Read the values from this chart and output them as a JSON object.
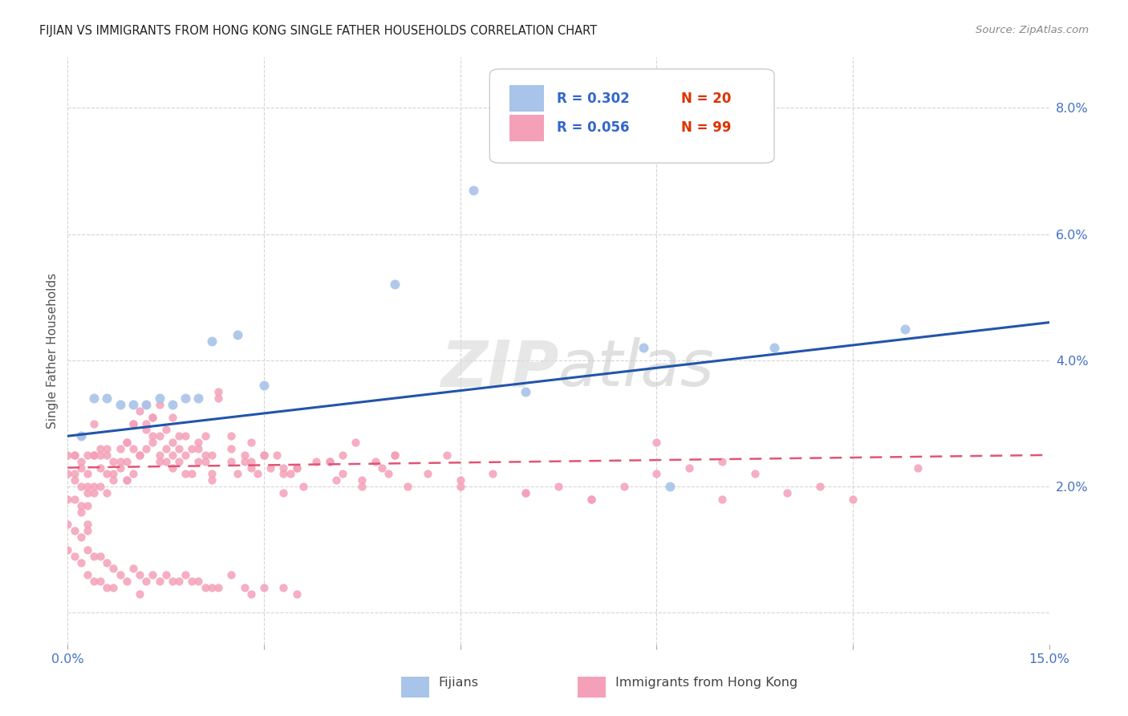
{
  "title": "FIJIAN VS IMMIGRANTS FROM HONG KONG SINGLE FATHER HOUSEHOLDS CORRELATION CHART",
  "source": "Source: ZipAtlas.com",
  "ylabel": "Single Father Households",
  "fijian_color": "#a8c4e8",
  "hk_color": "#f4a0b8",
  "fijian_line_color": "#2255aa",
  "hk_line_color": "#e05575",
  "hk_line_dash": [
    6,
    4
  ],
  "background_color": "#ffffff",
  "watermark": "ZIPatlas",
  "xlim": [
    0.0,
    0.15
  ],
  "ylim": [
    -0.005,
    0.088
  ],
  "fijian_x": [
    0.002,
    0.004,
    0.006,
    0.008,
    0.01,
    0.012,
    0.014,
    0.016,
    0.018,
    0.02,
    0.022,
    0.026,
    0.03,
    0.05,
    0.062,
    0.07,
    0.088,
    0.092,
    0.108,
    0.128
  ],
  "fijian_y": [
    0.028,
    0.034,
    0.034,
    0.033,
    0.033,
    0.033,
    0.034,
    0.033,
    0.034,
    0.034,
    0.043,
    0.044,
    0.036,
    0.052,
    0.067,
    0.035,
    0.042,
    0.02,
    0.042,
    0.045
  ],
  "hk_x": [
    0.001,
    0.001,
    0.001,
    0.002,
    0.002,
    0.002,
    0.002,
    0.003,
    0.003,
    0.003,
    0.003,
    0.004,
    0.004,
    0.004,
    0.005,
    0.005,
    0.005,
    0.006,
    0.006,
    0.007,
    0.007,
    0.008,
    0.008,
    0.009,
    0.009,
    0.009,
    0.01,
    0.01,
    0.01,
    0.011,
    0.011,
    0.012,
    0.012,
    0.012,
    0.013,
    0.013,
    0.014,
    0.014,
    0.014,
    0.015,
    0.015,
    0.016,
    0.016,
    0.016,
    0.017,
    0.017,
    0.018,
    0.018,
    0.019,
    0.019,
    0.02,
    0.02,
    0.021,
    0.021,
    0.022,
    0.022,
    0.023,
    0.025,
    0.025,
    0.026,
    0.027,
    0.028,
    0.028,
    0.029,
    0.03,
    0.031,
    0.032,
    0.033,
    0.033,
    0.034,
    0.035,
    0.036,
    0.038,
    0.04,
    0.041,
    0.042,
    0.044,
    0.045,
    0.047,
    0.049,
    0.05,
    0.052,
    0.055,
    0.058,
    0.06,
    0.065,
    0.07,
    0.075,
    0.08,
    0.085,
    0.09,
    0.095,
    0.1,
    0.1,
    0.105,
    0.11,
    0.115,
    0.12,
    0.13
  ],
  "hk_y": [
    0.025,
    0.022,
    0.018,
    0.028,
    0.024,
    0.02,
    0.017,
    0.022,
    0.02,
    0.017,
    0.014,
    0.03,
    0.025,
    0.02,
    0.026,
    0.023,
    0.02,
    0.025,
    0.022,
    0.024,
    0.021,
    0.026,
    0.023,
    0.027,
    0.024,
    0.021,
    0.03,
    0.026,
    0.022,
    0.032,
    0.025,
    0.033,
    0.029,
    0.026,
    0.031,
    0.028,
    0.033,
    0.028,
    0.024,
    0.029,
    0.024,
    0.031,
    0.027,
    0.023,
    0.028,
    0.024,
    0.028,
    0.022,
    0.026,
    0.022,
    0.027,
    0.024,
    0.028,
    0.024,
    0.025,
    0.021,
    0.035,
    0.028,
    0.024,
    0.022,
    0.025,
    0.027,
    0.023,
    0.022,
    0.025,
    0.023,
    0.025,
    0.023,
    0.019,
    0.022,
    0.023,
    0.02,
    0.024,
    0.024,
    0.021,
    0.025,
    0.027,
    0.021,
    0.024,
    0.022,
    0.025,
    0.02,
    0.022,
    0.025,
    0.021,
    0.022,
    0.019,
    0.02,
    0.018,
    0.02,
    0.027,
    0.023,
    0.024,
    0.018,
    0.022,
    0.019,
    0.02,
    0.018,
    0.023
  ],
  "hk_extra_x": [
    0.0,
    0.0,
    0.0,
    0.001,
    0.001,
    0.002,
    0.002,
    0.003,
    0.003,
    0.003,
    0.004,
    0.004,
    0.005,
    0.006,
    0.006,
    0.007,
    0.008,
    0.009,
    0.009,
    0.01,
    0.011,
    0.012,
    0.013,
    0.013,
    0.014,
    0.015,
    0.016,
    0.017,
    0.018,
    0.02,
    0.021,
    0.022,
    0.023,
    0.025,
    0.027,
    0.028,
    0.03,
    0.033,
    0.035,
    0.04,
    0.042,
    0.045,
    0.048,
    0.05,
    0.06,
    0.07,
    0.08,
    0.09
  ],
  "hk_extra_y": [
    0.025,
    0.022,
    0.018,
    0.025,
    0.021,
    0.023,
    0.016,
    0.025,
    0.019,
    0.013,
    0.025,
    0.019,
    0.025,
    0.026,
    0.019,
    0.022,
    0.024,
    0.027,
    0.021,
    0.03,
    0.025,
    0.03,
    0.031,
    0.027,
    0.025,
    0.026,
    0.025,
    0.026,
    0.025,
    0.026,
    0.025,
    0.022,
    0.034,
    0.026,
    0.024,
    0.024,
    0.025,
    0.022,
    0.023,
    0.024,
    0.022,
    0.02,
    0.023,
    0.025,
    0.02,
    0.019,
    0.018,
    0.022
  ],
  "hk_low_x": [
    0.0,
    0.0,
    0.001,
    0.001,
    0.002,
    0.002,
    0.003,
    0.003,
    0.004,
    0.004,
    0.005,
    0.005,
    0.006,
    0.006,
    0.007,
    0.007,
    0.008,
    0.009,
    0.01,
    0.011,
    0.011,
    0.012,
    0.013,
    0.014,
    0.015,
    0.016,
    0.017,
    0.018,
    0.019,
    0.02,
    0.021,
    0.022,
    0.023,
    0.025,
    0.027,
    0.028,
    0.03,
    0.033,
    0.035
  ],
  "hk_low_y": [
    0.014,
    0.01,
    0.013,
    0.009,
    0.012,
    0.008,
    0.01,
    0.006,
    0.009,
    0.005,
    0.009,
    0.005,
    0.008,
    0.004,
    0.007,
    0.004,
    0.006,
    0.005,
    0.007,
    0.006,
    0.003,
    0.005,
    0.006,
    0.005,
    0.006,
    0.005,
    0.005,
    0.006,
    0.005,
    0.005,
    0.004,
    0.004,
    0.004,
    0.006,
    0.004,
    0.003,
    0.004,
    0.004,
    0.003
  ]
}
